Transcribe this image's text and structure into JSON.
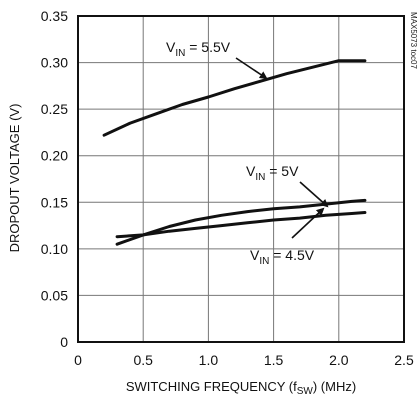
{
  "chart_data": {
    "type": "line",
    "code": "MAX5073 toc07",
    "xlabel": {
      "main": "SWITCHING FREQUENCY (f",
      "sub": "SW",
      "tail": ") (MHz)"
    },
    "ylabel": "DROPOUT VOLTAGE (V)",
    "xlim": [
      0,
      2.5
    ],
    "ylim": [
      0,
      0.35
    ],
    "xticks": [
      "0",
      "0.5",
      "1.0",
      "1.5",
      "2.0",
      "2.5"
    ],
    "xtick_values": [
      0,
      0.5,
      1.0,
      1.5,
      2.0,
      2.5
    ],
    "yticks": [
      "0",
      "0.05",
      "0.10",
      "0.15",
      "0.20",
      "0.25",
      "0.30",
      "0.35"
    ],
    "ytick_values": [
      0,
      0.05,
      0.1,
      0.15,
      0.2,
      0.25,
      0.3,
      0.35
    ],
    "grid": true,
    "series": [
      {
        "name": "VIN = 5.5V",
        "label": {
          "pre": "V",
          "sub": "IN",
          "post": " = 5.5V"
        },
        "x": [
          0.2,
          0.4,
          0.6,
          0.8,
          1.0,
          1.2,
          1.4,
          1.6,
          1.8,
          2.0,
          2.2
        ],
        "y": [
          0.222,
          0.235,
          0.245,
          0.255,
          0.263,
          0.272,
          0.28,
          0.288,
          0.295,
          0.302,
          0.302
        ]
      },
      {
        "name": "VIN = 5V",
        "label": {
          "pre": "V",
          "sub": "IN",
          "post": " = 5V"
        },
        "x": [
          0.3,
          0.5,
          0.7,
          0.9,
          1.1,
          1.3,
          1.5,
          1.7,
          1.9,
          2.1,
          2.2
        ],
        "y": [
          0.105,
          0.115,
          0.124,
          0.131,
          0.136,
          0.14,
          0.143,
          0.145,
          0.148,
          0.151,
          0.152
        ]
      },
      {
        "name": "VIN = 4.5V",
        "label": {
          "pre": "V",
          "sub": "IN",
          "post": " = 4.5V"
        },
        "x": [
          0.3,
          0.5,
          0.7,
          0.9,
          1.1,
          1.3,
          1.5,
          1.7,
          1.9,
          2.1,
          2.2
        ],
        "y": [
          0.113,
          0.115,
          0.119,
          0.122,
          0.125,
          0.128,
          0.131,
          0.133,
          0.136,
          0.138,
          0.139
        ]
      }
    ]
  }
}
